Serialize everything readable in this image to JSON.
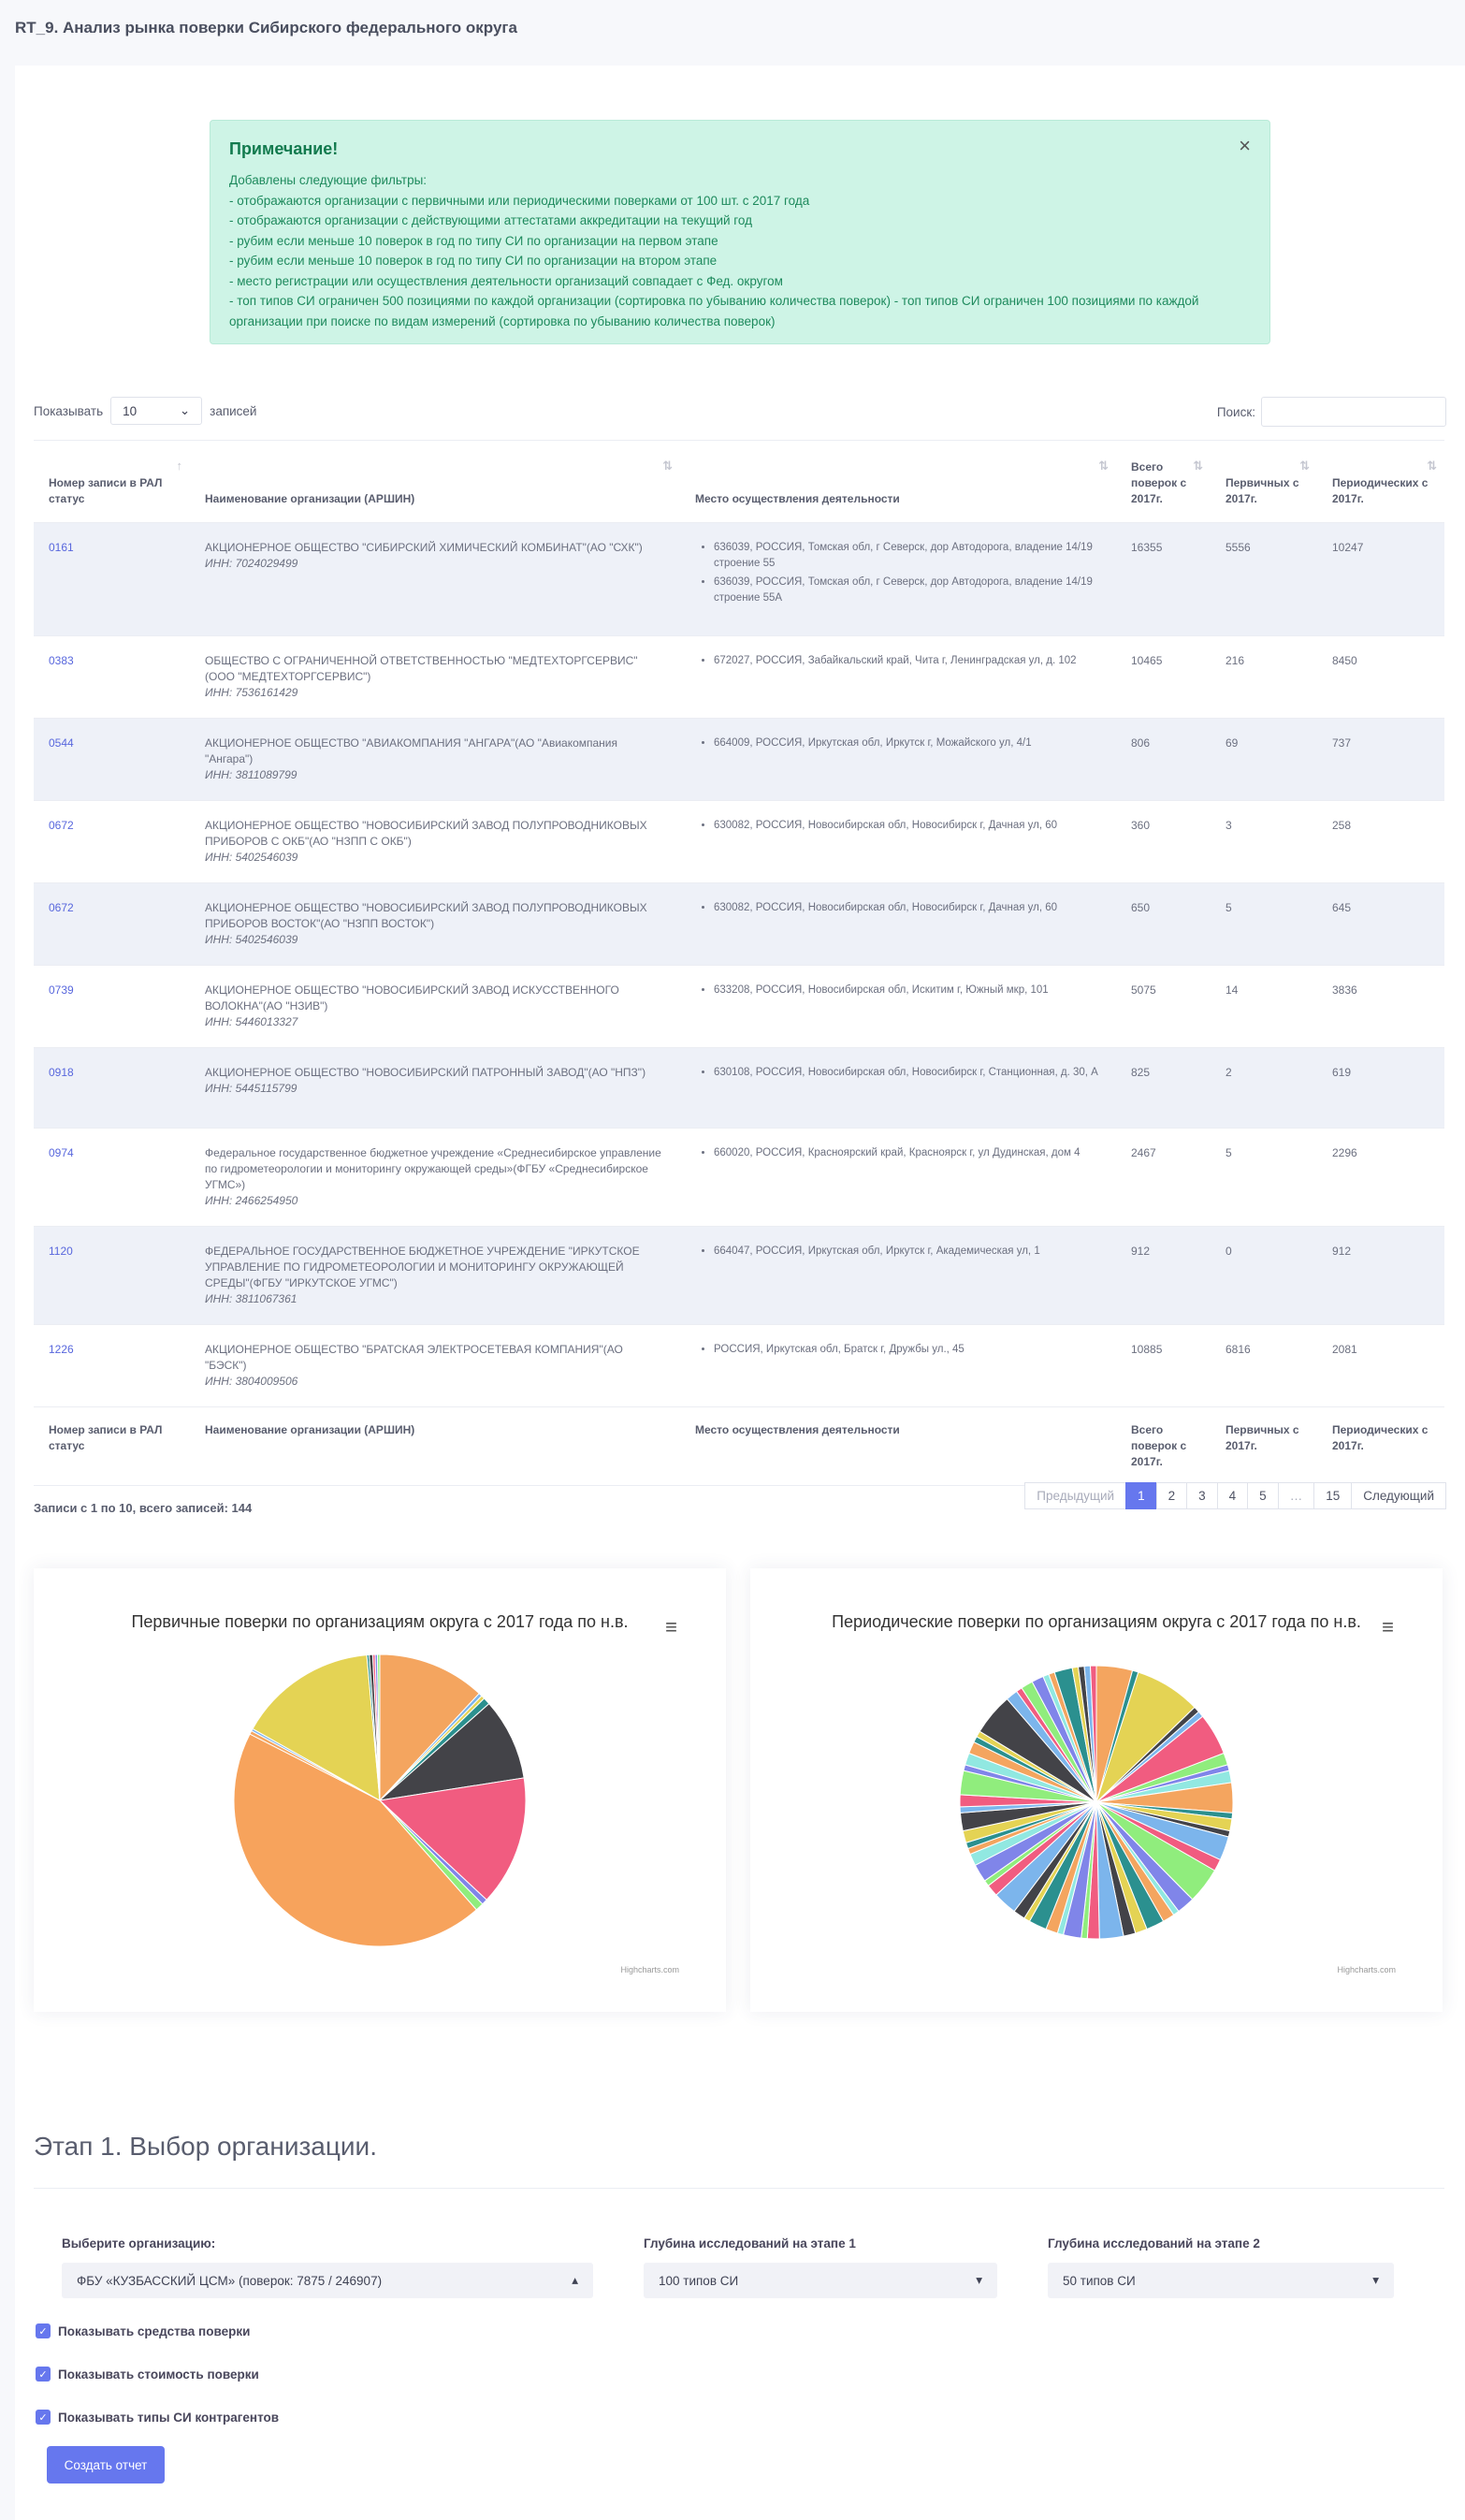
{
  "page_title": "RT_9. Анализ рынка поверки Сибирского федерального округа",
  "alert": {
    "title": "Примечание!",
    "close": "×",
    "lines": [
      "Добавлены следующие фильтры:",
      "- отображаются организации с первичными или периодическими поверками от 100 шт. с 2017 года",
      "- отображаются организации с действующими аттестатами аккредитации на текущий год",
      "- рубим если меньше 10 поверок в год по типу СИ по организации на первом этапе",
      "- рубим если меньше 10 поверок в год по типу СИ по организации на втором этапе",
      "- место регистрации или осуществления деятельности организаций совпадает с Фед. округом",
      "- топ типов СИ ограничен 500 позициями по каждой организации (сортировка по убыванию количества поверок) - топ типов СИ ограничен 100 позициями по каждой организации при поиске по видам измерений (сортировка по убыванию количества поверок)"
    ]
  },
  "table_controls": {
    "show_label": "Показывать",
    "show_value": "10",
    "records_label": "записей",
    "search_label": "Поиск:"
  },
  "columns": [
    "Номер записи в РАЛ статус",
    "Наименование организации (АРШИН)",
    "Место осуществления деятельности",
    "Всего поверок с 2017г.",
    "Первичных с 2017г.",
    "Периодических с 2017г."
  ],
  "rows": [
    {
      "num": "0161",
      "name": "АКЦИОНЕРНОЕ ОБЩЕСТВО \"СИБИРСКИЙ ХИМИЧЕСКИЙ КОМБИНАТ\"(АО \"СХК\")",
      "inn": "ИНН: 7024029499",
      "places": [
        "636039, РОССИЯ, Томская обл, г Северск, дор Автодорога, владение 14/19 строение 55",
        "636039, РОССИЯ, Томская обл, г Северск, дор Автодорога, владение 14/19 строение 55А"
      ],
      "total": "16355",
      "primary": "5556",
      "periodic": "10247"
    },
    {
      "num": "0383",
      "name": "ОБЩЕСТВО С ОГРАНИЧЕННОЙ ОТВЕТСТВЕННОСТЬЮ \"МЕДТЕХТОРГСЕРВИС\"(ООО \"МЕДТЕХТОРГСЕРВИС\")",
      "inn": "ИНН: 7536161429",
      "places": [
        "672027, РОССИЯ, Забайкальский край, Чита г, Ленинградская ул, д. 102"
      ],
      "total": "10465",
      "primary": "216",
      "periodic": "8450"
    },
    {
      "num": "0544",
      "name": "АКЦИОНЕРНОЕ ОБЩЕСТВО \"АВИАКОМПАНИЯ \"АНГАРА\"(АО \"Авиакомпания \"Ангара\")",
      "inn": "ИНН: 3811089799",
      "places": [
        "664009, РОССИЯ, Иркутская обл, Иркутск г, Можайского ул, 4/1"
      ],
      "total": "806",
      "primary": "69",
      "periodic": "737"
    },
    {
      "num": "0672",
      "name": "АКЦИОНЕРНОЕ ОБЩЕСТВО \"НОВОСИБИРСКИЙ ЗАВОД ПОЛУПРОВОДНИКОВЫХ ПРИБОРОВ С ОКБ\"(АО \"НЗПП С ОКБ\")",
      "inn": "ИНН: 5402546039",
      "places": [
        "630082, РОССИЯ, Новосибирская обл, Новосибирск г, Дачная ул, 60"
      ],
      "total": "360",
      "primary": "3",
      "periodic": "258"
    },
    {
      "num": "0672",
      "name": "АКЦИОНЕРНОЕ ОБЩЕСТВО \"НОВОСИБИРСКИЙ ЗАВОД ПОЛУПРОВОДНИКОВЫХ ПРИБОРОВ ВОСТОК\"(АО \"НЗПП ВОСТОК\")",
      "inn": "ИНН: 5402546039",
      "places": [
        "630082, РОССИЯ, Новосибирская обл, Новосибирск г, Дачная ул, 60"
      ],
      "total": "650",
      "primary": "5",
      "periodic": "645"
    },
    {
      "num": "0739",
      "name": "АКЦИОНЕРНОЕ ОБЩЕСТВО \"НОВОСИБИРСКИЙ ЗАВОД ИСКУССТВЕННОГО ВОЛОКНА\"(АО \"НЗИВ\")",
      "inn": "ИНН: 5446013327",
      "places": [
        "633208, РОССИЯ, Новосибирская обл, Искитим г, Южный мкр, 101"
      ],
      "total": "5075",
      "primary": "14",
      "periodic": "3836"
    },
    {
      "num": "0918",
      "name": "АКЦИОНЕРНОЕ ОБЩЕСТВО \"НОВОСИБИРСКИЙ ПАТРОННЫЙ ЗАВОД\"(АО \"НПЗ\")",
      "inn": "ИНН: 5445115799",
      "places": [
        "630108, РОССИЯ, Новосибирская обл, Новосибирск г, Станционная, д. 30, А"
      ],
      "total": "825",
      "primary": "2",
      "periodic": "619"
    },
    {
      "num": "0974",
      "name": "Федеральное государственное бюджетное учреждение «Среднесибирское управление по гидрометеорологии и мониторингу окружающей среды»(ФГБУ «Среднесибирское УГМС»)",
      "inn": "ИНН: 2466254950",
      "places": [
        "660020, РОССИЯ, Красноярский край, Красноярск г, ул Дудинская, дом 4"
      ],
      "total": "2467",
      "primary": "5",
      "periodic": "2296"
    },
    {
      "num": "1120",
      "name": "ФЕДЕРАЛЬНОЕ ГОСУДАРСТВЕННОЕ БЮДЖЕТНОЕ УЧРЕЖДЕНИЕ \"ИРКУТСКОЕ УПРАВЛЕНИЕ ПО ГИДРОМЕТЕОРОЛОГИИ И МОНИТОРИНГУ ОКРУЖАЮЩЕЙ СРЕДЫ\"(ФГБУ \"ИРКУТСКОЕ УГМС\")",
      "inn": "ИНН: 3811067361",
      "places": [
        "664047, РОССИЯ, Иркутская обл, Иркутск г, Академическая ул, 1"
      ],
      "total": "912",
      "primary": "0",
      "periodic": "912"
    },
    {
      "num": "1226",
      "name": "АКЦИОНЕРНОЕ ОБЩЕСТВО \"БРАТСКАЯ ЭЛЕКТРОСЕТЕВАЯ КОМПАНИЯ\"(АО \"БЭСК\")",
      "inn": "ИНН: 3804009506",
      "places": [
        "РОССИЯ, Иркутская обл, Братск г, Дружбы ул., 45"
      ],
      "total": "10885",
      "primary": "6816",
      "periodic": "2081"
    }
  ],
  "table_info": "Записи с 1 по 10, всего записей: 144",
  "pagination": [
    "Предыдущий",
    "1",
    "2",
    "3",
    "4",
    "5",
    "…",
    "15",
    "Следующий"
  ],
  "chart_data": [
    {
      "type": "pie",
      "title": "Первичные поверки по организациям округа с 2017 года по н.в.",
      "credits": "Highcharts.com",
      "colors": [
        "#f4a55f",
        "#7cb5ec",
        "#e4d354",
        "#2b908f",
        "#434348",
        "#f15c80",
        "#8085e9",
        "#90ed7d",
        "#f7a35c"
      ],
      "values": [
        4600,
        150,
        150,
        300,
        3500,
        5556,
        250,
        350,
        17000,
        150,
        100,
        5950,
        100,
        150,
        100,
        100,
        100
      ]
    },
    {
      "type": "pie",
      "title": "Периодические поверки по организациям округа с 2017 года по н.в.",
      "credits": "Highcharts.com",
      "colors": [
        "#f4a55f",
        "#2b908f",
        "#e4d354",
        "#434348",
        "#7cb5ec",
        "#f15c80",
        "#90ed7d",
        "#8085e9",
        "#91e8e1"
      ],
      "values": [
        6,
        1,
        11,
        1,
        1,
        7,
        2,
        1,
        2,
        5,
        1,
        2,
        1,
        4,
        2,
        6,
        3,
        1,
        2,
        3,
        2,
        2,
        4,
        2,
        1,
        3,
        1,
        2,
        3,
        1,
        2,
        4,
        2,
        1,
        3,
        2,
        1,
        1,
        2,
        3,
        1,
        2,
        4,
        1,
        2,
        2,
        1,
        1,
        7,
        2,
        1,
        2,
        2,
        1,
        1,
        3,
        1,
        1,
        1,
        1
      ]
    }
  ],
  "stage": {
    "title": "Этап 1. Выбор организации.",
    "org_label": "Выберите организацию:",
    "org_value": "ФБУ «КУЗБАССКИЙ ЦСМ» (поверок: 7875 / 246907)",
    "depth1_label": "Глубина исследований на этапе 1",
    "depth1_value": "100 типов СИ",
    "depth2_label": "Глубина исследований на этапе 2",
    "depth2_value": "50 типов СИ",
    "check1": "Показывать средства поверки",
    "check2": "Показывать стоимость поверки",
    "check3": "Показывать типы СИ контрагентов",
    "submit": "Создать отчет"
  }
}
